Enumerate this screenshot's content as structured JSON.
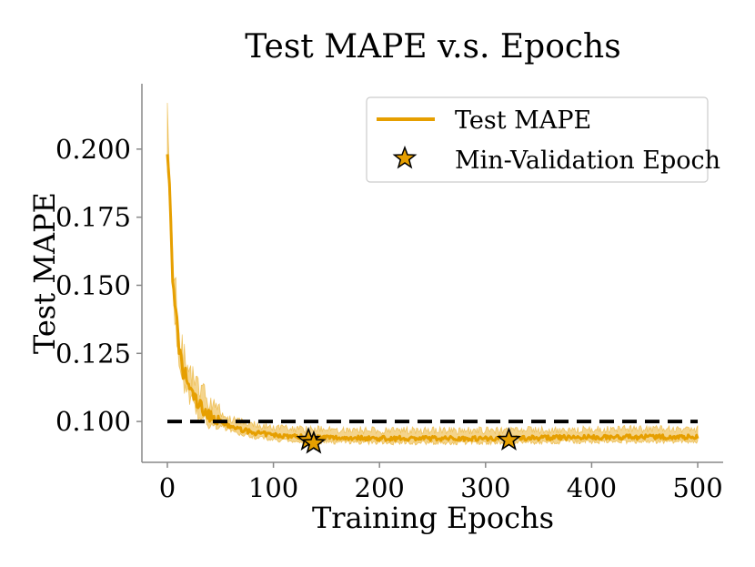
{
  "chart_data": {
    "type": "line",
    "title": "Test MAPE v.s. Epochs",
    "xlabel": "Training Epochs",
    "ylabel": "Test MAPE",
    "xlim": [
      -24,
      524
    ],
    "ylim": [
      0.085,
      0.224
    ],
    "xticks": [
      0,
      100,
      200,
      300,
      400,
      500
    ],
    "xtick_labels": [
      "0",
      "100",
      "200",
      "300",
      "400",
      "500"
    ],
    "yticks": [
      0.1,
      0.125,
      0.15,
      0.175,
      0.2
    ],
    "ytick_labels": [
      "0.100",
      "0.125",
      "0.150",
      "0.175",
      "0.200"
    ],
    "grid": false,
    "legend_position": "top-right",
    "legend": {
      "line_label": "Test MAPE",
      "marker_label": "Min-Validation Epoch"
    },
    "colors": {
      "series": "#e69f00",
      "reference": "#000000",
      "axis": "#888888"
    },
    "reference_line": {
      "y": 0.1,
      "x_start": 0,
      "x_end": 500,
      "style": "dashed"
    },
    "series": [
      {
        "name": "Test MAPE",
        "x": [
          0,
          2,
          4,
          6,
          8,
          10,
          12,
          15,
          18,
          20,
          25,
          30,
          35,
          40,
          45,
          50,
          55,
          60,
          70,
          80,
          90,
          100,
          120,
          140,
          160,
          180,
          200,
          250,
          300,
          350,
          400,
          450,
          500
        ],
        "y": [
          0.2,
          0.185,
          0.165,
          0.145,
          0.14,
          0.13,
          0.123,
          0.118,
          0.116,
          0.113,
          0.109,
          0.106,
          0.104,
          0.102,
          0.101,
          0.1,
          0.099,
          0.098,
          0.097,
          0.096,
          0.0955,
          0.095,
          0.0945,
          0.0942,
          0.094,
          0.094,
          0.0938,
          0.0938,
          0.0938,
          0.094,
          0.0942,
          0.0943,
          0.0943
        ]
      }
    ],
    "min_validation_epochs": [
      {
        "x": 133,
        "y": 0.0932
      },
      {
        "x": 138,
        "y": 0.092
      },
      {
        "x": 322,
        "y": 0.0932
      }
    ]
  }
}
